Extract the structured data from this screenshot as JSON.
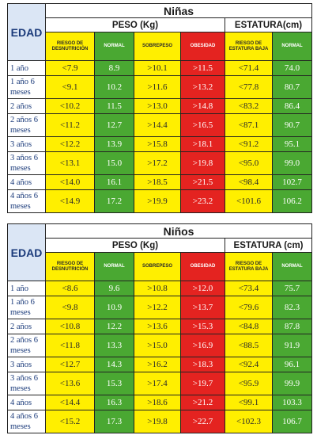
{
  "tables": [
    {
      "title": "Niñas",
      "edad_label": "EDAD",
      "peso_label": "PESO (Kg)",
      "estatura_label": "ESTATURA(cm)",
      "col_headers": [
        "RIESGO DE DESNUTRICIÓN",
        "NORMAL",
        "SOBREPESO",
        "OBESIDAD",
        "RIESGO DE ESTATURA BAJA",
        "NORMAL"
      ],
      "rows": [
        {
          "age": "1 año",
          "values": [
            "<7.9",
            "8.9",
            ">10.1",
            ">11.5",
            "<71.4",
            "74.0"
          ]
        },
        {
          "age": "1 año 6 meses",
          "values": [
            "<9.1",
            "10.2",
            ">11.6",
            ">13.2",
            "<77.8",
            "80.7"
          ]
        },
        {
          "age": "2 años",
          "values": [
            "<10.2",
            "11.5",
            ">13.0",
            ">14.8",
            "<83.2",
            "86.4"
          ]
        },
        {
          "age": "2 años 6 meses",
          "values": [
            "<11.2",
            "12.7",
            ">14.4",
            ">16.5",
            "<87.1",
            "90.7"
          ]
        },
        {
          "age": "3 años",
          "values": [
            "<12.2",
            "13.9",
            ">15.8",
            ">18.1",
            "<91.2",
            "95.1"
          ]
        },
        {
          "age": "3 años 6 meses",
          "values": [
            "<13.1",
            "15.0",
            ">17.2",
            ">19.8",
            "<95.0",
            "99.0"
          ]
        },
        {
          "age": "4 años",
          "values": [
            "<14.0",
            "16.1",
            ">18.5",
            ">21.5",
            "<98.4",
            "102.7"
          ]
        },
        {
          "age": "4 años 6 meses",
          "values": [
            "<14.9",
            "17.2",
            ">19.9",
            ">23.2",
            "<101.6",
            "106.2"
          ]
        }
      ]
    },
    {
      "title": "Niños",
      "edad_label": "EDAD",
      "peso_label": "PESO (Kg)",
      "estatura_label": "ESTATURA (cm)",
      "col_headers": [
        "RIESGO DE DESNUTRICIÓN",
        "NORMAL",
        "SOBREPESO",
        "OBESIDAD",
        "RIESGO DE ESTATURA BAJA",
        "NORMAL"
      ],
      "rows": [
        {
          "age": "1 año",
          "values": [
            "<8.6",
            "9.6",
            ">10.8",
            ">12.0",
            "<73.4",
            "75.7"
          ]
        },
        {
          "age": "1 año 6 meses",
          "values": [
            "<9.8",
            "10.9",
            ">12.2",
            ">13.7",
            "<79.6",
            "82.3"
          ]
        },
        {
          "age": "2 años",
          "values": [
            "<10.8",
            "12.2",
            ">13.6",
            ">15.3",
            "<84.8",
            "87.8"
          ]
        },
        {
          "age": "2 años 6 meses",
          "values": [
            "<11.8",
            "13.3",
            ">15.0",
            ">16.9",
            "<88.5",
            "91.9"
          ]
        },
        {
          "age": "3 años",
          "values": [
            "<12.7",
            "14.3",
            ">16.2",
            ">18.3",
            "<92.4",
            "96.1"
          ]
        },
        {
          "age": "3 años 6 meses",
          "values": [
            "<13.6",
            "15.3",
            ">17.4",
            ">19.7",
            "<95.9",
            "99.9"
          ]
        },
        {
          "age": "4 años",
          "values": [
            "<14.4",
            "16.3",
            ">18.6",
            ">21.2",
            "<99.1",
            "103.3"
          ]
        },
        {
          "age": "4 años 6 meses",
          "values": [
            "<15.2",
            "17.3",
            ">19.8",
            ">22.7",
            "<102.3",
            "106.7"
          ]
        }
      ]
    }
  ],
  "colors": {
    "riesgo": "#ffef00",
    "normal": "#4aa832",
    "sobrepeso": "#ffef00",
    "obesidad": "#e42320",
    "edad_header": "#dbe6f5",
    "border": "#222222"
  }
}
